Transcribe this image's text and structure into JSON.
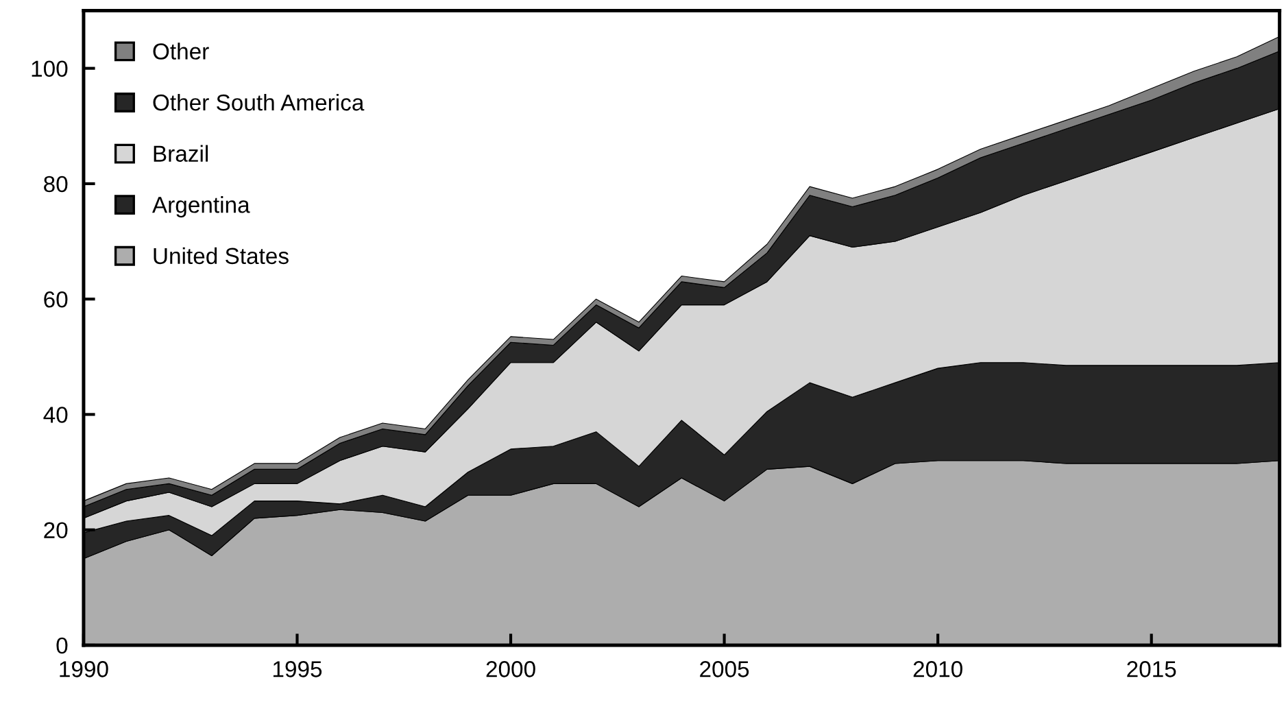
{
  "chart_data": {
    "type": "area",
    "stacked": true,
    "x": [
      1990,
      1991,
      1992,
      1993,
      1994,
      1995,
      1996,
      1997,
      1998,
      1999,
      2000,
      2001,
      2002,
      2003,
      2004,
      2005,
      2006,
      2007,
      2008,
      2009,
      2010,
      2011,
      2012,
      2013,
      2014,
      2015,
      2016,
      2017,
      2018
    ],
    "series": [
      {
        "name": "United States",
        "color": "#adadad",
        "values": [
          15,
          18,
          20,
          15.5,
          22,
          22.5,
          23.5,
          23,
          21.5,
          26,
          26,
          28,
          28,
          24,
          29,
          25,
          30.5,
          31,
          28,
          31.5,
          32,
          32,
          32,
          31.5,
          31.5,
          31.5,
          31.5,
          31.5,
          32
        ]
      },
      {
        "name": "Argentina",
        "color": "#262626",
        "values": [
          4.5,
          3.5,
          2.5,
          3.5,
          3,
          2.5,
          1,
          3,
          2.5,
          4,
          8,
          6.5,
          9,
          7,
          10,
          8,
          10,
          14.5,
          15,
          14,
          16,
          17,
          17,
          17,
          17,
          17,
          17,
          17,
          17
        ]
      },
      {
        "name": "Brazil",
        "color": "#d6d6d6",
        "values": [
          2.5,
          3.5,
          4,
          5,
          3,
          3,
          7.5,
          8.5,
          9.5,
          11,
          15,
          14.5,
          19,
          20,
          20,
          26,
          22.5,
          25.5,
          26,
          24.5,
          24.5,
          26,
          29,
          32,
          34.5,
          37,
          39.5,
          42,
          44
        ]
      },
      {
        "name": "Other South America",
        "color": "#262626",
        "values": [
          2,
          2,
          1.5,
          2,
          2.5,
          2.5,
          3,
          3,
          3,
          4,
          3.5,
          3,
          3,
          4,
          4,
          3,
          5,
          7,
          7,
          8,
          8.5,
          9.5,
          9,
          9,
          9,
          9,
          9.5,
          9.5,
          10
        ]
      },
      {
        "name": "Other",
        "color": "#808080",
        "values": [
          1,
          1,
          1,
          1,
          1,
          1,
          1,
          1,
          1,
          1,
          1,
          1,
          1,
          1,
          1,
          1,
          1.5,
          1.5,
          1.5,
          1.5,
          1.5,
          1.5,
          1.5,
          1.5,
          1.5,
          2,
          2,
          2,
          2.5
        ]
      }
    ],
    "xlim": [
      1990,
      2018
    ],
    "xticks": [
      1990,
      1995,
      2000,
      2005,
      2010,
      2015
    ],
    "ylim": [
      0,
      110
    ],
    "yticks": [
      0,
      20,
      40,
      60,
      80,
      100
    ],
    "legend": "top left",
    "grid": false
  }
}
